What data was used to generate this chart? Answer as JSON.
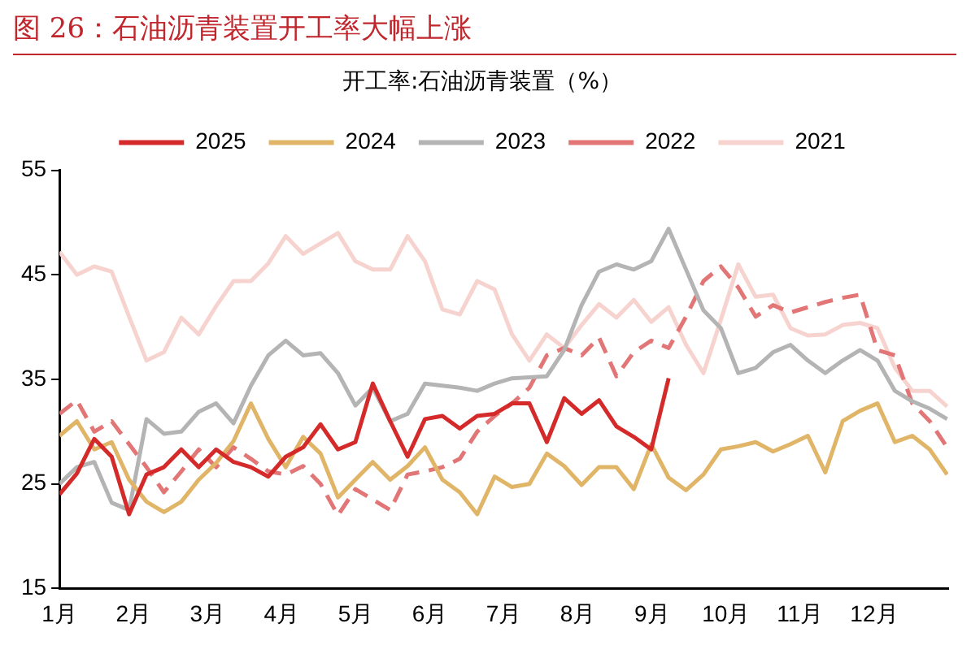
{
  "chart_data": {
    "type": "line",
    "title": "图 26：石油沥青装置开工率大幅上涨",
    "legend_title": "开工率:石油沥青装置（%）",
    "legend": "top",
    "grid": false,
    "marker": "none",
    "x": [
      1,
      1.235,
      1.47,
      1.705,
      1.94,
      2.175,
      2.41,
      2.645,
      2.88,
      3.115,
      3.35,
      3.585,
      3.82,
      4.055,
      4.29,
      4.525,
      4.76,
      4.995,
      5.23,
      5.465,
      5.7,
      5.935,
      6.17,
      6.405,
      6.64,
      6.875,
      7.11,
      7.345,
      7.58,
      7.815,
      8.05,
      8.285,
      8.52,
      8.755,
      8.99,
      9.225,
      9.46,
      9.695,
      9.93,
      10.165,
      10.4,
      10.635,
      10.87,
      11.105,
      11.34,
      11.575,
      11.81,
      12.045,
      12.28,
      12.515,
      12.75,
      12.985
    ],
    "xlim": [
      1,
      13
    ],
    "xticks": [
      {
        "value": 1,
        "label": "1月"
      },
      {
        "value": 2,
        "label": "2月"
      },
      {
        "value": 3,
        "label": "3月"
      },
      {
        "value": 4,
        "label": "4月"
      },
      {
        "value": 5,
        "label": "5月"
      },
      {
        "value": 6,
        "label": "6月"
      },
      {
        "value": 7,
        "label": "7月"
      },
      {
        "value": 8,
        "label": "8月"
      },
      {
        "value": 9,
        "label": "9月"
      },
      {
        "value": 10,
        "label": "10月"
      },
      {
        "value": 11,
        "label": "11月"
      },
      {
        "value": 12,
        "label": "12月"
      }
    ],
    "ylim": [
      15,
      55
    ],
    "yticks": [
      15,
      25,
      35,
      45,
      55
    ],
    "series": [
      {
        "name": "2025",
        "color": "#d42a2a",
        "line_style": "solid",
        "values": [
          24.0,
          26.0,
          29.3,
          27.6,
          22.1,
          25.9,
          26.6,
          28.3,
          26.6,
          28.3,
          27.1,
          26.6,
          25.7,
          27.6,
          28.5,
          30.7,
          28.3,
          29.0,
          34.6,
          31.0,
          27.6,
          31.2,
          31.5,
          30.3,
          31.5,
          31.7,
          32.7,
          32.7,
          29.0,
          33.2,
          31.7,
          33.0,
          30.5,
          29.5,
          28.3,
          35.1,
          null,
          null,
          null,
          null,
          null,
          null,
          null,
          null,
          null,
          null,
          null,
          null,
          null,
          null,
          null,
          null
        ]
      },
      {
        "name": "2024",
        "color": "#e0b568",
        "line_style": "solid",
        "values": [
          29.6,
          31.0,
          28.3,
          29.0,
          25.4,
          23.3,
          22.3,
          23.3,
          25.4,
          27.0,
          29.1,
          32.7,
          29.3,
          26.6,
          29.5,
          27.9,
          23.7,
          25.4,
          27.1,
          25.4,
          26.7,
          28.5,
          25.4,
          24.2,
          22.1,
          25.7,
          24.7,
          25.0,
          27.9,
          26.7,
          24.9,
          26.6,
          26.6,
          24.5,
          28.8,
          25.6,
          24.4,
          25.9,
          28.3,
          28.6,
          29.0,
          28.1,
          28.8,
          29.6,
          26.1,
          31.0,
          32.0,
          32.7,
          29.0,
          29.6,
          28.3,
          25.9
        ]
      },
      {
        "name": "2023",
        "color": "#b4b4b4",
        "line_style": "solid",
        "values": [
          25.0,
          26.6,
          27.1,
          23.2,
          22.5,
          31.2,
          29.8,
          30.0,
          31.9,
          32.7,
          30.8,
          34.4,
          37.3,
          38.7,
          37.3,
          37.5,
          35.6,
          32.5,
          34.2,
          31.0,
          31.7,
          34.6,
          34.4,
          34.2,
          33.9,
          34.6,
          35.1,
          35.2,
          35.3,
          37.8,
          42.1,
          45.3,
          46.0,
          45.5,
          46.3,
          49.4,
          45.5,
          41.6,
          39.9,
          35.6,
          36.1,
          37.6,
          38.3,
          36.8,
          35.6,
          36.8,
          37.8,
          36.8,
          33.9,
          32.9,
          32.2,
          31.2
        ]
      },
      {
        "name": "2022",
        "color": "#e27676",
        "line_style": "dashed",
        "values": [
          31.7,
          33.0,
          30.0,
          31.0,
          28.8,
          26.6,
          24.2,
          26.2,
          28.3,
          26.6,
          28.5,
          27.4,
          26.2,
          25.9,
          26.7,
          25.0,
          22.0,
          24.5,
          23.5,
          22.5,
          25.9,
          26.2,
          26.6,
          27.4,
          30.0,
          31.5,
          32.7,
          34.2,
          37.3,
          38.0,
          37.3,
          39.0,
          35.3,
          37.6,
          38.7,
          38.0,
          41.0,
          44.4,
          45.8,
          43.8,
          41.0,
          42.1,
          41.4,
          41.9,
          42.4,
          42.8,
          43.1,
          37.8,
          37.3,
          32.7,
          31.0,
          28.5
        ]
      },
      {
        "name": "2021",
        "color": "#f7d3cf",
        "line_style": "solid",
        "values": [
          47.2,
          45.0,
          45.8,
          45.3,
          41.0,
          36.8,
          37.6,
          40.9,
          39.3,
          42.0,
          44.4,
          44.4,
          46.1,
          48.7,
          47.0,
          48.0,
          49.0,
          46.3,
          45.5,
          45.5,
          48.7,
          46.3,
          41.7,
          41.2,
          44.4,
          43.6,
          39.3,
          36.8,
          39.3,
          38.0,
          40.2,
          42.2,
          40.9,
          42.6,
          40.5,
          41.9,
          38.3,
          35.6,
          40.7,
          46.0,
          42.9,
          43.1,
          39.9,
          39.2,
          39.3,
          40.2,
          40.4,
          39.9,
          36.1,
          33.9,
          33.9,
          32.4
        ]
      }
    ]
  }
}
